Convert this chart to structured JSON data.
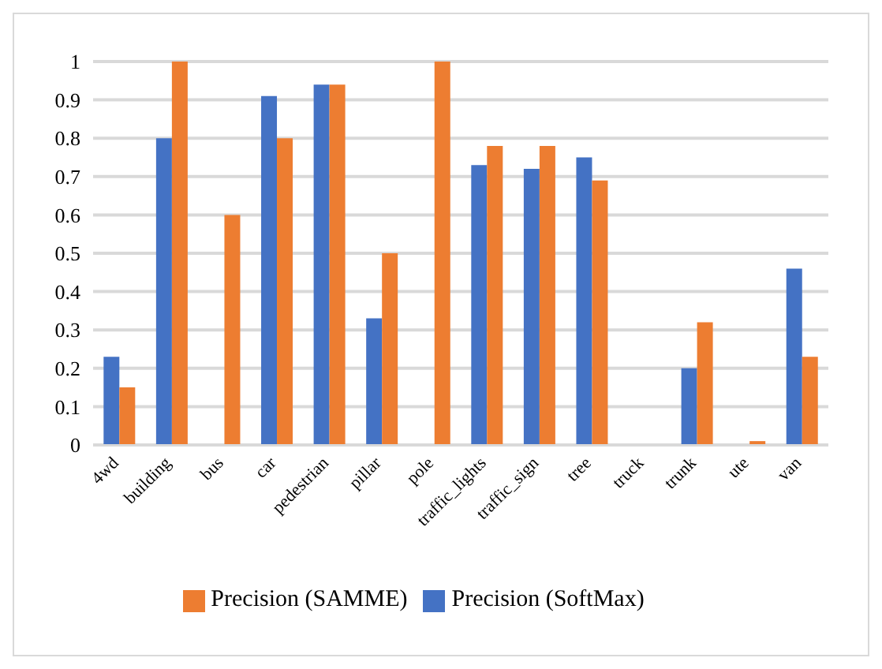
{
  "chart_data": {
    "type": "bar",
    "categories": [
      "4wd",
      "building",
      "bus",
      "car",
      "pedestrian",
      "pillar",
      "pole",
      "traffic_lights",
      "traffic_sign",
      "tree",
      "truck",
      "trunk",
      "ute",
      "van"
    ],
    "series": [
      {
        "name": "Precision (SoftMax)",
        "color": "#4472c4",
        "values": [
          0.23,
          0.8,
          0,
          0.91,
          0.94,
          0.33,
          0,
          0.73,
          0.72,
          0.75,
          0,
          0.2,
          0,
          0.46
        ]
      },
      {
        "name": "Precision (SAMME)",
        "color": "#ed7d31",
        "values": [
          0.15,
          1,
          0.6,
          0.8,
          0.94,
          0.5,
          1,
          0.78,
          0.78,
          0.69,
          0,
          0.32,
          0.01,
          0.23
        ]
      }
    ],
    "ylim": [
      0,
      1
    ],
    "yticks": [
      0,
      0.1,
      0.2,
      0.3,
      0.4,
      0.5,
      0.6,
      0.7,
      0.8,
      0.9,
      1
    ],
    "grid": "y",
    "legend": "bottom"
  }
}
